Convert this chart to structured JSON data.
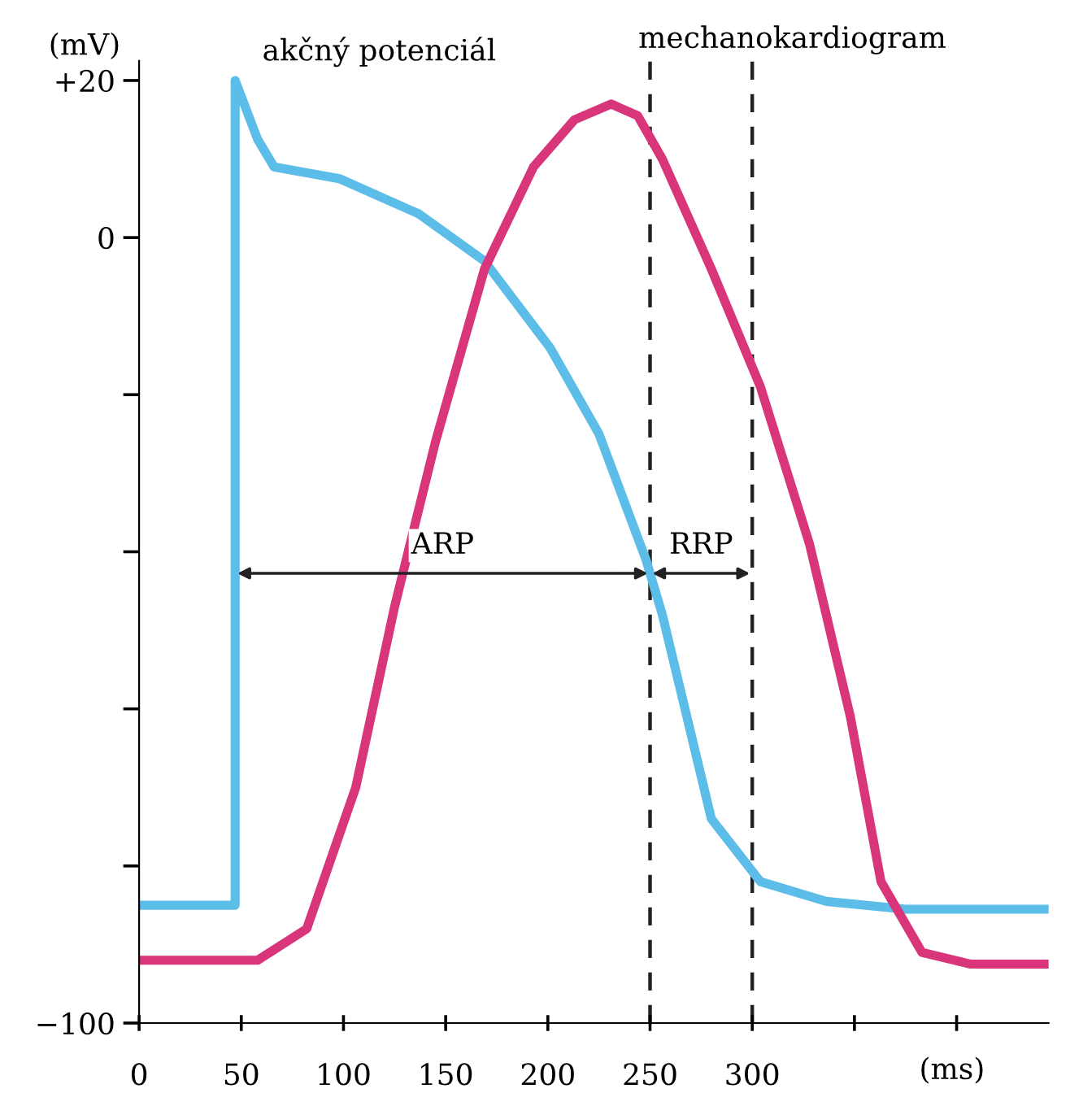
{
  "chart_data": {
    "type": "line",
    "xlabel": "(ms)",
    "ylabel": "(mV)",
    "xlim": [
      0,
      445
    ],
    "ylim": [
      -100,
      22.5
    ],
    "xticks": [
      0,
      50,
      100,
      150,
      200,
      250,
      300,
      {
        "value": 350,
        "label": null
      },
      {
        "value": 400,
        "label": null
      }
    ],
    "yticks": [
      {
        "value": -100,
        "label": "−100"
      },
      {
        "value": -80,
        "label": null
      },
      {
        "value": -60,
        "label": null
      },
      {
        "value": -40,
        "label": null
      },
      {
        "value": -20,
        "label": null
      },
      0,
      {
        "value": 20,
        "label": "+20"
      }
    ],
    "grid": false,
    "legend": false,
    "marker": "none",
    "line_style": "solid",
    "series": [
      {
        "name": "akčný potenciál",
        "color": "#5bbde8",
        "x": [
          0,
          47,
          47,
          58,
          66,
          98,
          137,
          169,
          201,
          225,
          248,
          256,
          268,
          280,
          304,
          336,
          375,
          445
        ],
        "values": [
          -85,
          -85,
          20,
          12.5,
          9,
          7.5,
          3,
          -3,
          -14,
          -25,
          -41,
          -48,
          -61,
          -74,
          -82,
          -84.5,
          -85.5,
          -85.5
        ]
      },
      {
        "name": "mechanokardiogram",
        "color": "#d9357a",
        "x": [
          0,
          58,
          82,
          106,
          125,
          145,
          169,
          193,
          213,
          231,
          244,
          256,
          280,
          304,
          328,
          348,
          363,
          383,
          407,
          445
        ],
        "values": [
          -92,
          -92,
          -88,
          -70,
          -47,
          -26,
          -4,
          9,
          15,
          17,
          15.5,
          10,
          -4,
          -19,
          -39,
          -61,
          -82,
          -91,
          -92.5,
          -92.5
        ]
      }
    ],
    "ref_lines": [
      {
        "axis": "x",
        "value": 250,
        "color": "#222222",
        "line_style": "dashed"
      },
      {
        "axis": "x",
        "value": 300,
        "color": "#222222",
        "line_style": "dashed"
      }
    ],
    "annotations": [
      "ARP",
      "RRP"
    ]
  }
}
